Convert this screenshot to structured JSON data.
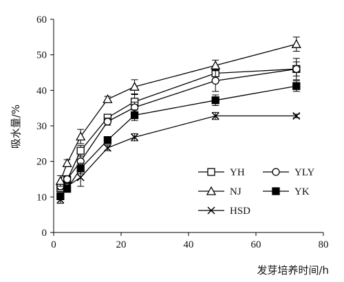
{
  "chart_data": {
    "type": "line",
    "title": "",
    "xlabel": "发芽培养时间/h",
    "ylabel": "吸水量/%",
    "xlim": [
      0,
      80
    ],
    "ylim": [
      0,
      60
    ],
    "x_ticks": [
      0,
      20,
      40,
      60,
      80
    ],
    "y_ticks": [
      0,
      10,
      20,
      30,
      40,
      50,
      60
    ],
    "grid": false,
    "legend_position": "lower-right",
    "x": [
      2,
      4,
      8,
      16,
      24,
      48,
      72
    ],
    "series": [
      {
        "name": "YH",
        "marker": "square-open",
        "values": [
          12.5,
          14.8,
          23.0,
          32.3,
          36.8,
          44.8,
          46.0
        ],
        "errors": [
          1.0,
          1.0,
          1.5,
          1.0,
          2.0,
          2.0,
          3.0
        ]
      },
      {
        "name": "YLY",
        "marker": "circle-open",
        "values": [
          13.0,
          15.0,
          20.0,
          31.2,
          35.2,
          42.7,
          46.0
        ],
        "errors": [
          1.0,
          1.0,
          1.5,
          1.0,
          1.5,
          3.0,
          2.0
        ]
      },
      {
        "name": "NJ",
        "marker": "triangle-open",
        "values": [
          14.5,
          19.5,
          27.0,
          37.5,
          41.0,
          47.0,
          53.0
        ],
        "errors": [
          1.5,
          1.0,
          2.0,
          0.8,
          2.0,
          1.5,
          2.0
        ]
      },
      {
        "name": "YK",
        "marker": "square-filled",
        "values": [
          10.2,
          12.3,
          18.0,
          26.0,
          33.0,
          37.2,
          41.2
        ],
        "errors": [
          1.0,
          1.0,
          1.5,
          1.0,
          1.5,
          1.5,
          1.5
        ]
      },
      {
        "name": "HSD",
        "marker": "x",
        "values": [
          9.2,
          13.0,
          15.5,
          23.8,
          26.8,
          32.8,
          32.8
        ],
        "errors": [
          1.0,
          1.0,
          2.5,
          0.8,
          1.0,
          1.0,
          0.5
        ]
      }
    ]
  }
}
